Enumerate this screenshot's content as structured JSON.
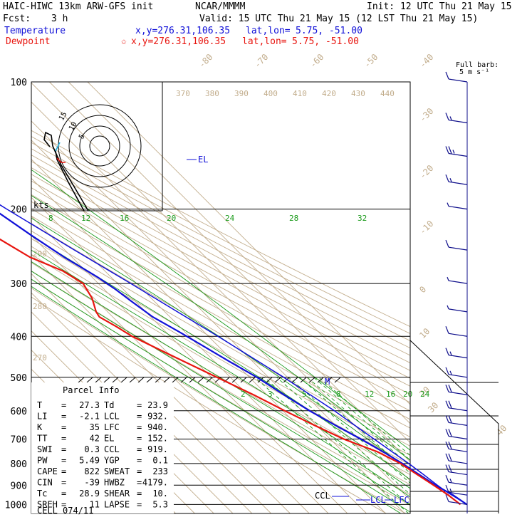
{
  "header": {
    "model": "HAIC-HIWC 13km ARW-GFS init",
    "org": "NCAR/MMMM",
    "init": "Init: 12 UTC Thu 21 May 15",
    "fcst_label": "Fcst:",
    "fcst_value": "3 h",
    "valid": "Valid: 15 UTC Thu 21 May 15 (12 LST Thu 21 May 15)",
    "temp_label": "Temperature",
    "temp_xy": "x,y=276.31,106.35",
    "temp_latlon_label": "lat,lon=",
    "temp_latlon": "5.75, -51.00",
    "dew_label": "Dewpoint",
    "dew_xy": "x,y=276.31,106.35",
    "dew_latlon_label": "lat,lon=",
    "dew_latlon": "5.75, -51.00"
  },
  "colors": {
    "temperature": "#e8150f",
    "dewpoint_parcel": "#1010d8",
    "isotherm": "#c2ad8c",
    "mixing_ratio": "#1a9a1a",
    "isobar": "#000000",
    "barb": "#0d0d8a"
  },
  "barb_legend": {
    "line1": "Full barb:",
    "line2": "5 m s⁻¹"
  },
  "hodograph": {
    "units": "kts",
    "rings": [
      "5",
      "10",
      "15"
    ]
  },
  "parcel_info": {
    "title": "Parcel Info",
    "rows": [
      {
        "l1": "T",
        "v1": "27.3",
        "l2": "Td",
        "v2": "23.9"
      },
      {
        "l1": "LI",
        "v1": "-2.1",
        "l2": "LCL",
        "v2": "932."
      },
      {
        "l1": "K",
        "v1": "35",
        "l2": "LFC",
        "v2": "940."
      },
      {
        "l1": "TT",
        "v1": "42",
        "l2": "EL",
        "v2": "152."
      },
      {
        "l1": "SWI",
        "v1": "0.3",
        "l2": "CCL",
        "v2": "919."
      },
      {
        "l1": "PW",
        "v1": "5.49",
        "l2": "YGP",
        "v2": "0.1"
      },
      {
        "l1": "CAPE",
        "v1": "822",
        "l2": "SWEAT",
        "v2": "233"
      },
      {
        "l1": "CIN",
        "v1": "-39",
        "l2": "HWBZ",
        "v2": "4179."
      },
      {
        "l1": "Tc",
        "v1": "28.9",
        "l2": "SHEAR",
        "v2": "10."
      },
      {
        "l1": "SREH",
        "v1": "11",
        "l2": "LAPSE",
        "v2": "5.3"
      }
    ],
    "cell_label": "CELL",
    "cell_value": "074/11"
  },
  "levels": {
    "el": "EL",
    "ccl": "CCL",
    "lcl": "LCL",
    "lfc": "LFC",
    "m": "M"
  },
  "chart_data": {
    "type": "line",
    "pressure_ticks": [
      "100",
      "200",
      "300",
      "400",
      "500",
      "600",
      "700",
      "800",
      "900",
      "1000"
    ],
    "isotherm_labels": [
      "-80",
      "-70",
      "-60",
      "-50",
      "-40",
      "-30",
      "-20",
      "-10",
      "0",
      "10",
      "20",
      "30",
      "40"
    ],
    "theta_labels_top": [
      "370",
      "380",
      "390",
      "400",
      "410",
      "420",
      "430",
      "440"
    ],
    "theta_labels_left": [
      "290",
      "280",
      "270"
    ],
    "mixing_ratio_labels_upper": [
      "8",
      "12",
      "16",
      "20",
      "24",
      "28",
      "32"
    ],
    "mixing_ratio_labels_lower": [
      "2",
      "3",
      "5",
      "8",
      "12",
      "16",
      "20",
      "24"
    ],
    "series": [
      {
        "name": "Temperature",
        "points": [
          [
            100,
            -78
          ],
          [
            120,
            -78
          ],
          [
            150,
            -76
          ],
          [
            170,
            -74
          ],
          [
            190,
            -70
          ],
          [
            200,
            -66
          ],
          [
            230,
            -60
          ],
          [
            260,
            -54
          ],
          [
            290,
            -47
          ],
          [
            310,
            -44
          ],
          [
            330,
            -42
          ],
          [
            360,
            -39
          ],
          [
            390,
            -33
          ],
          [
            420,
            -28
          ],
          [
            460,
            -22
          ],
          [
            500,
            -16
          ],
          [
            550,
            -11
          ],
          [
            600,
            -6
          ],
          [
            650,
            0
          ],
          [
            700,
            6
          ],
          [
            750,
            11
          ],
          [
            800,
            15
          ],
          [
            850,
            18
          ],
          [
            900,
            21
          ],
          [
            950,
            25
          ],
          [
            1000,
            27.3
          ]
        ]
      },
      {
        "name": "Dewpoint",
        "points": [
          [
            100,
            -82
          ],
          [
            120,
            -84
          ],
          [
            150,
            -87
          ],
          [
            170,
            -88
          ],
          [
            185,
            -87
          ],
          [
            200,
            -84
          ],
          [
            230,
            -80
          ],
          [
            260,
            -72
          ],
          [
            280,
            -62
          ],
          [
            300,
            -58
          ],
          [
            325,
            -61
          ],
          [
            350,
            -66
          ],
          [
            360,
            -67
          ],
          [
            380,
            -63
          ],
          [
            400,
            -60
          ],
          [
            450,
            -48
          ],
          [
            500,
            -37
          ],
          [
            550,
            -27
          ],
          [
            600,
            -19
          ],
          [
            650,
            -11
          ],
          [
            700,
            -3
          ],
          [
            750,
            8
          ],
          [
            800,
            14
          ],
          [
            850,
            17
          ],
          [
            900,
            20
          ],
          [
            950,
            22.5
          ],
          [
            1000,
            23.9
          ]
        ]
      },
      {
        "name": "Parcel",
        "points": [
          [
            1000,
            27.3
          ],
          [
            960,
            25
          ],
          [
            932,
            23.2
          ],
          [
            900,
            22
          ],
          [
            850,
            20.3
          ],
          [
            800,
            18.3
          ],
          [
            700,
            13
          ],
          [
            600,
            7
          ],
          [
            500,
            -2
          ],
          [
            400,
            -15
          ],
          [
            300,
            -33
          ],
          [
            250,
            -45
          ],
          [
            200,
            -59
          ],
          [
            152,
            -75
          ],
          [
            120,
            -86
          ],
          [
            100,
            -92
          ]
        ]
      }
    ],
    "wind_barbs": [
      {
        "p": 100,
        "speed": 10
      },
      {
        "p": 125,
        "speed": 15
      },
      {
        "p": 150,
        "speed": 25
      },
      {
        "p": 175,
        "speed": 15
      },
      {
        "p": 200,
        "speed": 5
      },
      {
        "p": 250,
        "speed": 10
      },
      {
        "p": 300,
        "speed": 5
      },
      {
        "p": 350,
        "speed": 5
      },
      {
        "p": 400,
        "speed": 10
      },
      {
        "p": 450,
        "speed": 15
      },
      {
        "p": 500,
        "speed": 15
      },
      {
        "p": 550,
        "speed": 20
      },
      {
        "p": 600,
        "speed": 20
      },
      {
        "p": 650,
        "speed": 20
      },
      {
        "p": 700,
        "speed": 20
      },
      {
        "p": 750,
        "speed": 20
      },
      {
        "p": 800,
        "speed": 20
      },
      {
        "p": 850,
        "speed": 20
      },
      {
        "p": 900,
        "speed": 15
      },
      {
        "p": 950,
        "speed": 15
      },
      {
        "p": 1000,
        "speed": 10
      }
    ]
  }
}
